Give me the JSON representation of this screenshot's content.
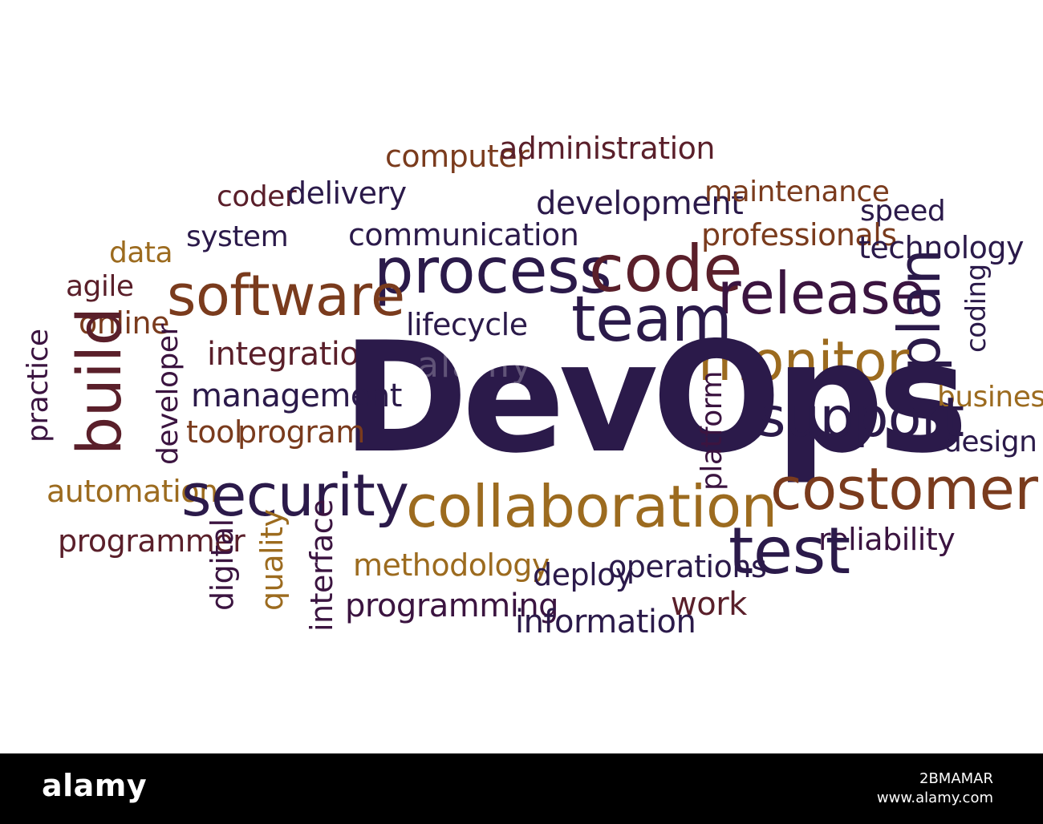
{
  "words": {
    "devops": "DevOps",
    "computer": "computer",
    "administration": "administration",
    "coder": "coder",
    "delivery": "delivery",
    "development": "development",
    "maintenance": "maintenance",
    "speed": "speed",
    "system": "system",
    "communication": "communication",
    "professionals": "professionals",
    "technology": "technology",
    "data": "data",
    "process": "process",
    "code": "code",
    "software": "software",
    "agile": "agile",
    "release": "release",
    "online": "online",
    "lifecycle": "lifecycle",
    "team": "team",
    "plan": "plan",
    "coding": "coding",
    "integration": "integration",
    "monitor": "monitor",
    "practice": "practice",
    "build": "build",
    "developer": "developer",
    "management": "management",
    "business": "business",
    "support": "support",
    "tool": "tool",
    "program": "program",
    "platform": "platform",
    "design": "design",
    "costomer": "costomer",
    "automation": "automation",
    "security": "security",
    "collaboration": "collaboration",
    "reliability": "reliability",
    "programmer": "programmer",
    "test": "test",
    "digital": "digital",
    "quality": "quality",
    "interface": "interface",
    "methodology": "methodology",
    "deploy": "deploy",
    "operations": "operations",
    "programming": "programming",
    "work": "work",
    "information": "information"
  },
  "colors": {
    "indigo": "#2b1a4a",
    "brown": "#7a3b1d",
    "ochre": "#9c6b1f",
    "maroon": "#5a1f2a",
    "plum": "#3b1440"
  },
  "watermark": "alamy",
  "footer": {
    "logo": "alamy",
    "image_id": "2BMAMAR",
    "site": "www.alamy.com"
  }
}
